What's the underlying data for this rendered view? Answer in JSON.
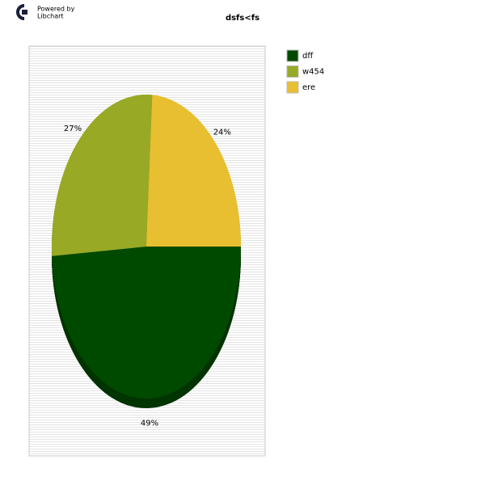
{
  "logo": {
    "lines": [
      "Powered by",
      "Libchart"
    ]
  },
  "chart_data": {
    "type": "pie",
    "title": "dsfs<fs",
    "categories": [
      "dff",
      "w454",
      "ere"
    ],
    "values": [
      49,
      27,
      24
    ],
    "value_labels": [
      "49%",
      "27%",
      "24%"
    ],
    "colors": [
      "#004a00",
      "#97a925",
      "#e8bf30"
    ],
    "legend": "right"
  }
}
